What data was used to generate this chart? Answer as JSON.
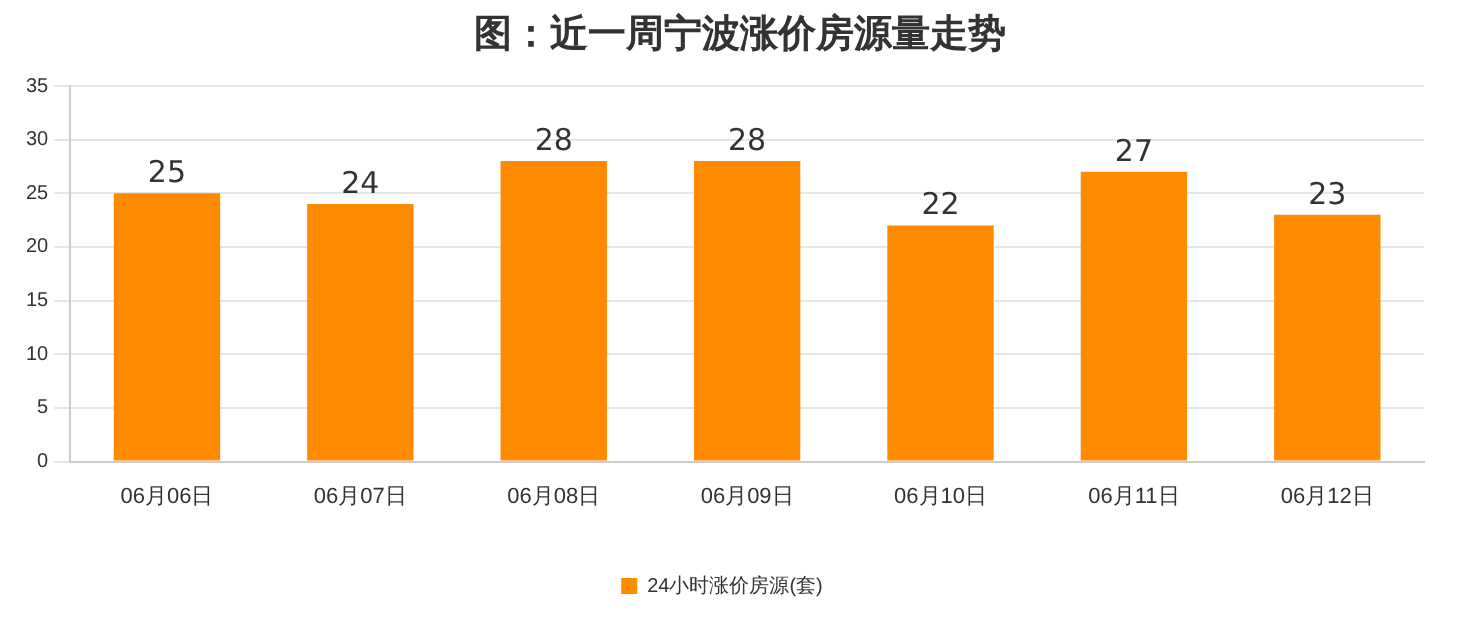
{
  "chart_data": {
    "type": "bar",
    "title": "图：近一周宁波涨价房源量走势",
    "categories": [
      "06月06日",
      "06月07日",
      "06月08日",
      "06月09日",
      "06月10日",
      "06月11日",
      "06月12日"
    ],
    "series": [
      {
        "name": "24小时涨价房源(套)",
        "color": "#ff8a00",
        "values": [
          25,
          24,
          28,
          28,
          22,
          27,
          23
        ]
      }
    ],
    "ylim": [
      0,
      35
    ],
    "yticks": [
      0,
      5,
      10,
      15,
      20,
      25,
      30,
      35
    ],
    "grid": "y",
    "legend": "bottom",
    "data_labels": true
  }
}
